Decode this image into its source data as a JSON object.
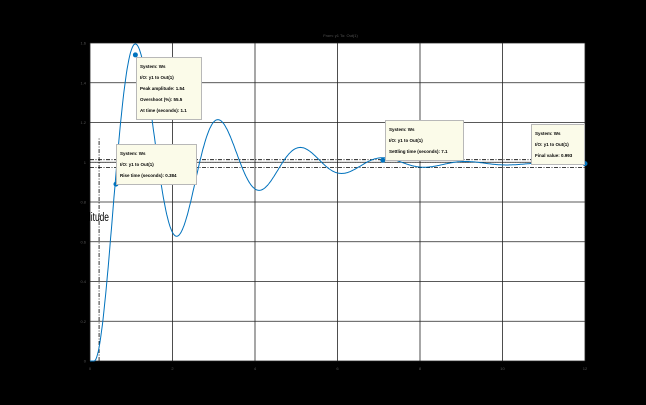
{
  "chart_data": {
    "type": "line",
    "title": "From: y1  To: Out(1)",
    "xlabel": "",
    "ylabel": "Amplitude",
    "ylabel_visible": "litude",
    "xlim": [
      0,
      12
    ],
    "ylim": [
      0,
      1.6
    ],
    "xticks": [
      "0",
      "2",
      "4",
      "6",
      "8",
      "10",
      "12"
    ],
    "yticks": [
      "0",
      "0.2",
      "0.4",
      "0.6",
      "0.8",
      "1",
      "1.2",
      "1.4",
      "1.6"
    ],
    "grid": true,
    "series": [
      {
        "name": "Ws",
        "color": "#0072bd",
        "model": {
          "delay": 0.1,
          "sigma": 0.5,
          "omega": 3.1416,
          "final": 0.993,
          "t_end": 12
        }
      }
    ],
    "settling_band": [
      0.973,
      1.013
    ],
    "markers": [
      {
        "t": 1.1,
        "y": 1.54
      },
      {
        "t": 0.63,
        "y": 0.89
      },
      {
        "t": 7.1,
        "y": 1.01
      },
      {
        "t": 12,
        "y": 0.993
      }
    ],
    "rise_marker_t": 0.22
  },
  "datatips": [
    {
      "lines": [
        "System: Ws",
        "I/O: y1 to Out(1)",
        "Peak amplitude: 1.54",
        "Overshoot (%): 55.5",
        "At time (seconds): 1.1"
      ]
    },
    {
      "lines": [
        "System: Ws",
        "I/O: y1 to Out(1)",
        "Rise time (seconds): 0.384"
      ]
    },
    {
      "lines": [
        "System: Ws",
        "I/O: y1 to Out(1)",
        "Settling time (seconds): 7.1"
      ]
    },
    {
      "lines": [
        "System: Ws",
        "I/O: y1 to Out(1)",
        "Final value: 0.993"
      ]
    }
  ]
}
